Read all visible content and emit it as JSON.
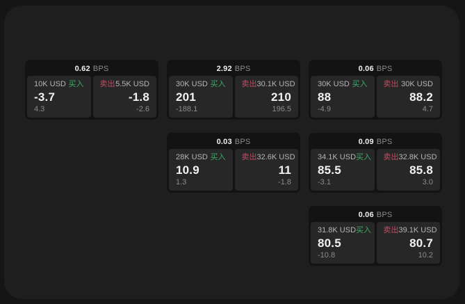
{
  "labels": {
    "bps_unit": "BPS",
    "buy": "买入",
    "sell": "卖出"
  },
  "colors": {
    "background": "#151516",
    "surface": "#1e1e1f",
    "card": "#131314",
    "panel": "#272728",
    "buy_accent": "#3fa966",
    "sell_accent": "#bf4b60"
  },
  "cards": [
    {
      "bps": "0.62",
      "buy": {
        "amount": "10K USD",
        "price": "-3.7",
        "delta": "4.3"
      },
      "sell": {
        "amount": "5.5K USD",
        "price": "-1.8",
        "delta": "-2.6"
      }
    },
    {
      "bps": "2.92",
      "buy": {
        "amount": "30K USD",
        "price": "201",
        "delta": "-188.1"
      },
      "sell": {
        "amount": "30.1K USD",
        "price": "210",
        "delta": "196.5"
      }
    },
    {
      "bps": "0.06",
      "buy": {
        "amount": "30K USD",
        "price": "88",
        "delta": "-4.9"
      },
      "sell": {
        "amount": "30K USD",
        "price": "88.2",
        "delta": "4.7"
      }
    },
    {
      "bps": "0.03",
      "buy": {
        "amount": "28K USD",
        "price": "10.9",
        "delta": "1.3"
      },
      "sell": {
        "amount": "32.6K USD",
        "price": "11",
        "delta": "-1.8"
      }
    },
    {
      "bps": "0.09",
      "buy": {
        "amount": "34.1K USD",
        "price": "85.5",
        "delta": "-3.1"
      },
      "sell": {
        "amount": "32.8K USD",
        "price": "85.8",
        "delta": "3.0"
      }
    },
    {
      "bps": "0.06",
      "buy": {
        "amount": "31.8K USD",
        "price": "80.5",
        "delta": "-10.8"
      },
      "sell": {
        "amount": "39.1K USD",
        "price": "80.7",
        "delta": "10.2"
      }
    }
  ]
}
